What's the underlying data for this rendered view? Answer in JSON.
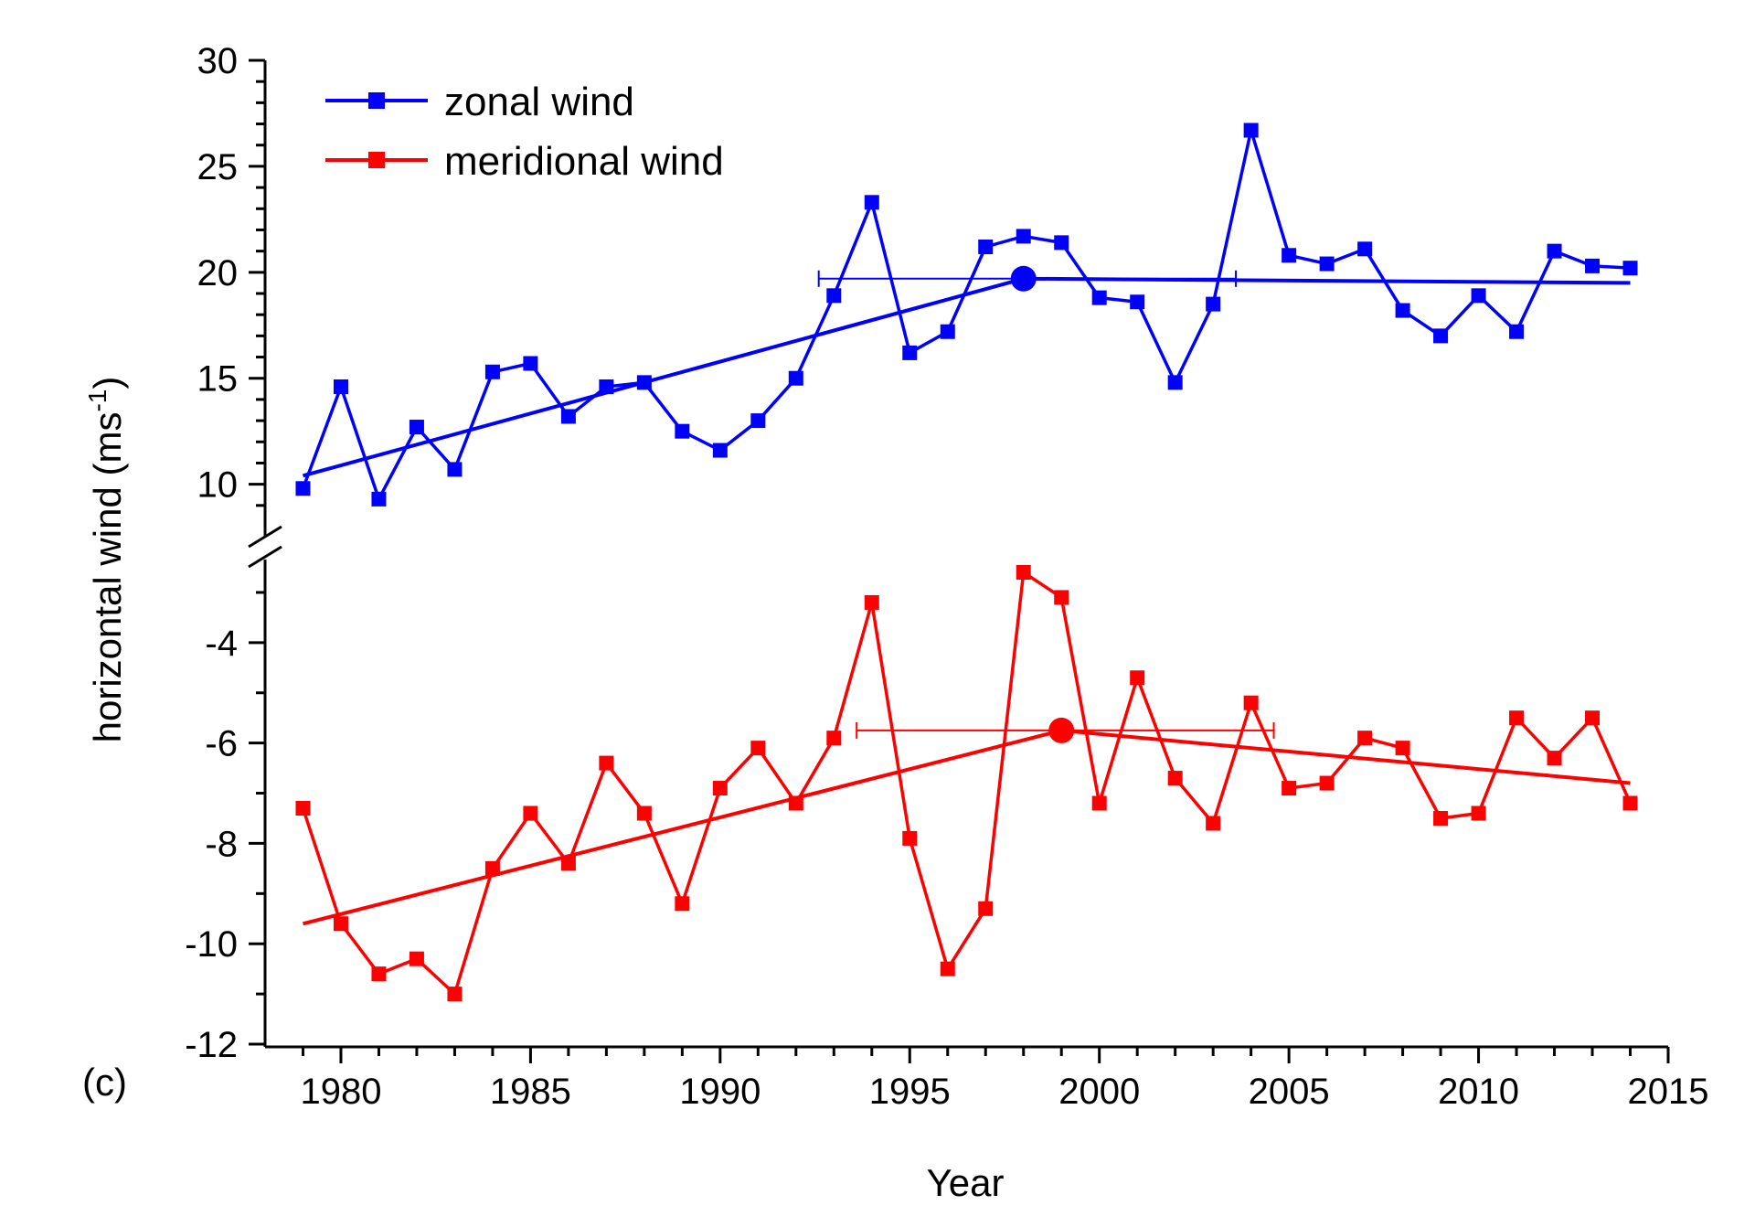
{
  "chart_data": {
    "type": "line",
    "panel_label": "(c)",
    "xlabel": "Year",
    "ylabel": "horizontal wind (ms",
    "ylabel_superscript": "-1",
    "ylabel_suffix": ")",
    "xlim": [
      1978,
      2015
    ],
    "xticks": [
      1980,
      1985,
      1990,
      1995,
      2000,
      2005,
      2010,
      2015
    ],
    "y_axis_broken": true,
    "upper_segment": {
      "ylim": [
        8,
        30
      ],
      "yticks": [
        10,
        15,
        20,
        25,
        30
      ]
    },
    "lower_segment": {
      "ylim": [
        -12,
        -2.6
      ],
      "yticks": [
        -12,
        -10,
        -8,
        -6,
        -4
      ]
    },
    "legend_position": "top-left",
    "grid": false,
    "series": [
      {
        "name": "zonal wind",
        "color": "#0000ff",
        "segment": "upper",
        "x": [
          1979,
          1980,
          1981,
          1982,
          1983,
          1984,
          1985,
          1986,
          1987,
          1988,
          1989,
          1990,
          1991,
          1992,
          1993,
          1994,
          1995,
          1996,
          1997,
          1998,
          1999,
          2000,
          2001,
          2002,
          2003,
          2004,
          2005,
          2006,
          2007,
          2008,
          2009,
          2010,
          2011,
          2012,
          2013,
          2014
        ],
        "values": [
          9.8,
          14.6,
          9.3,
          12.7,
          10.7,
          15.3,
          15.7,
          13.2,
          14.6,
          14.8,
          12.5,
          11.6,
          13.0,
          15.0,
          18.9,
          23.3,
          16.2,
          17.2,
          21.2,
          21.7,
          21.4,
          18.8,
          18.6,
          14.8,
          18.5,
          26.7,
          20.8,
          20.4,
          21.1,
          18.2,
          17.0,
          18.9,
          17.2,
          21.0,
          20.3,
          20.2
        ],
        "trend": [
          [
            1979,
            10.4
          ],
          [
            1998,
            19.7
          ],
          [
            2014,
            19.5
          ]
        ],
        "change_point": {
          "x": 1998,
          "y": 19.7,
          "range": [
            1992.6,
            2003.6
          ]
        }
      },
      {
        "name": "meridional wind",
        "color": "#ff0000",
        "segment": "lower",
        "x": [
          1979,
          1980,
          1981,
          1982,
          1983,
          1984,
          1985,
          1986,
          1987,
          1988,
          1989,
          1990,
          1991,
          1992,
          1993,
          1994,
          1995,
          1996,
          1997,
          1998,
          1999,
          2000,
          2001,
          2002,
          2003,
          2004,
          2005,
          2006,
          2007,
          2008,
          2009,
          2010,
          2011,
          2012,
          2013,
          2014
        ],
        "values": [
          -7.3,
          -9.6,
          -10.6,
          -10.3,
          -11.0,
          -8.5,
          -7.4,
          -8.4,
          -6.4,
          -7.4,
          -9.2,
          -6.9,
          -6.1,
          -7.2,
          -5.9,
          -3.2,
          -7.9,
          -10.5,
          -9.3,
          -2.6,
          -3.1,
          -7.2,
          -4.7,
          -6.7,
          -7.6,
          -5.2,
          -6.9,
          -6.8,
          -5.9,
          -6.1,
          -7.5,
          -7.4,
          -5.5,
          -6.3,
          -5.5,
          -7.2
        ],
        "trend": [
          [
            1979,
            -9.6
          ],
          [
            1999,
            -5.75
          ],
          [
            2014,
            -6.8
          ]
        ],
        "change_point": {
          "x": 1999,
          "y": -5.75,
          "range": [
            1993.6,
            2004.6
          ]
        }
      }
    ]
  }
}
